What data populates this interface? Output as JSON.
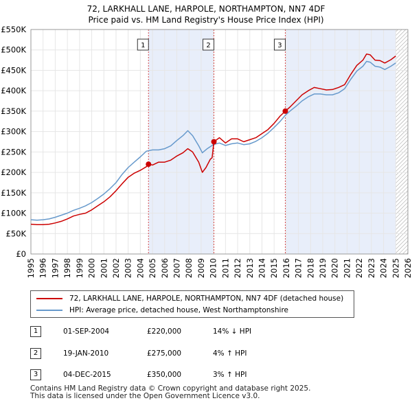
{
  "chart_data": {
    "type": "line",
    "title": "72, LARKHALL LANE, HARPOLE, NORTHAMPTON, NN7 4DF",
    "subtitle": "Price paid vs. HM Land Registry's House Price Index (HPI)",
    "xlim": [
      1995,
      2026
    ],
    "ylim": [
      0,
      550000
    ],
    "x_ticks": [
      "1995",
      "1996",
      "1997",
      "1998",
      "1999",
      "2000",
      "2001",
      "2002",
      "2003",
      "2004",
      "2005",
      "2006",
      "2007",
      "2008",
      "2009",
      "2010",
      "2011",
      "2012",
      "2013",
      "2014",
      "2015",
      "2016",
      "2017",
      "2018",
      "2019",
      "2020",
      "2021",
      "2022",
      "2023",
      "2024",
      "2025",
      "2026"
    ],
    "y_ticks": [
      {
        "value": 0,
        "label": "£0"
      },
      {
        "value": 50000,
        "label": "£50K"
      },
      {
        "value": 100000,
        "label": "£100K"
      },
      {
        "value": 150000,
        "label": "£150K"
      },
      {
        "value": 200000,
        "label": "£200K"
      },
      {
        "value": 250000,
        "label": "£250K"
      },
      {
        "value": 300000,
        "label": "£300K"
      },
      {
        "value": 350000,
        "label": "£350K"
      },
      {
        "value": 400000,
        "label": "£400K"
      },
      {
        "value": 450000,
        "label": "£450K"
      },
      {
        "value": 500000,
        "label": "£500K"
      },
      {
        "value": 550000,
        "label": "£550K"
      }
    ],
    "series": [
      {
        "name": "72, LARKHALL LANE, HARPOLE, NORTHAMPTON, NN7 4DF (detached house)",
        "color": "#cc0000",
        "points": [
          [
            1995.0,
            73000
          ],
          [
            1995.5,
            72000
          ],
          [
            1996.0,
            72000
          ],
          [
            1996.5,
            73000
          ],
          [
            1997.0,
            76000
          ],
          [
            1997.5,
            80000
          ],
          [
            1998.0,
            86000
          ],
          [
            1998.5,
            93000
          ],
          [
            1999.0,
            97000
          ],
          [
            1999.5,
            100000
          ],
          [
            2000.0,
            108000
          ],
          [
            2000.5,
            118000
          ],
          [
            2001.0,
            128000
          ],
          [
            2001.5,
            140000
          ],
          [
            2002.0,
            155000
          ],
          [
            2002.5,
            172000
          ],
          [
            2003.0,
            188000
          ],
          [
            2003.5,
            198000
          ],
          [
            2004.0,
            205000
          ],
          [
            2004.5,
            214000
          ],
          [
            2004.67,
            220000
          ],
          [
            2005.0,
            218000
          ],
          [
            2005.5,
            225000
          ],
          [
            2006.0,
            225000
          ],
          [
            2006.5,
            230000
          ],
          [
            2007.0,
            240000
          ],
          [
            2007.5,
            248000
          ],
          [
            2007.9,
            258000
          ],
          [
            2008.3,
            250000
          ],
          [
            2008.8,
            225000
          ],
          [
            2009.1,
            200000
          ],
          [
            2009.4,
            212000
          ],
          [
            2009.75,
            232000
          ],
          [
            2009.9,
            236000
          ],
          [
            2010.05,
            275000
          ],
          [
            2010.5,
            285000
          ],
          [
            2011.0,
            272000
          ],
          [
            2011.5,
            282000
          ],
          [
            2012.0,
            282000
          ],
          [
            2012.5,
            275000
          ],
          [
            2013.0,
            280000
          ],
          [
            2013.5,
            285000
          ],
          [
            2014.0,
            295000
          ],
          [
            2014.5,
            305000
          ],
          [
            2015.0,
            320000
          ],
          [
            2015.5,
            338000
          ],
          [
            2015.92,
            350000
          ],
          [
            2016.3,
            360000
          ],
          [
            2016.8,
            375000
          ],
          [
            2017.3,
            390000
          ],
          [
            2017.8,
            400000
          ],
          [
            2018.3,
            408000
          ],
          [
            2018.8,
            405000
          ],
          [
            2019.3,
            402000
          ],
          [
            2019.8,
            403000
          ],
          [
            2020.3,
            408000
          ],
          [
            2020.8,
            415000
          ],
          [
            2021.3,
            440000
          ],
          [
            2021.8,
            462000
          ],
          [
            2022.3,
            475000
          ],
          [
            2022.6,
            490000
          ],
          [
            2022.9,
            488000
          ],
          [
            2023.3,
            475000
          ],
          [
            2023.7,
            474000
          ],
          [
            2024.1,
            468000
          ],
          [
            2024.6,
            476000
          ],
          [
            2025.0,
            485000
          ]
        ]
      },
      {
        "name": "HPI: Average price, detached house, West Northamptonshire",
        "color": "#6699cc",
        "points": [
          [
            1995.0,
            84000
          ],
          [
            1995.5,
            83000
          ],
          [
            1996.0,
            84000
          ],
          [
            1996.5,
            86000
          ],
          [
            1997.0,
            90000
          ],
          [
            1997.5,
            95000
          ],
          [
            1998.0,
            100000
          ],
          [
            1998.5,
            107000
          ],
          [
            1999.0,
            112000
          ],
          [
            1999.5,
            118000
          ],
          [
            2000.0,
            126000
          ],
          [
            2000.5,
            136000
          ],
          [
            2001.0,
            147000
          ],
          [
            2001.5,
            160000
          ],
          [
            2002.0,
            175000
          ],
          [
            2002.5,
            195000
          ],
          [
            2003.0,
            212000
          ],
          [
            2003.5,
            225000
          ],
          [
            2004.0,
            238000
          ],
          [
            2004.5,
            252000
          ],
          [
            2005.0,
            255000
          ],
          [
            2005.5,
            255000
          ],
          [
            2006.0,
            258000
          ],
          [
            2006.5,
            265000
          ],
          [
            2007.0,
            278000
          ],
          [
            2007.5,
            290000
          ],
          [
            2007.9,
            302000
          ],
          [
            2008.3,
            290000
          ],
          [
            2008.8,
            265000
          ],
          [
            2009.1,
            248000
          ],
          [
            2009.5,
            258000
          ],
          [
            2010.0,
            268000
          ],
          [
            2010.5,
            272000
          ],
          [
            2011.0,
            266000
          ],
          [
            2011.5,
            270000
          ],
          [
            2012.0,
            272000
          ],
          [
            2012.5,
            268000
          ],
          [
            2013.0,
            270000
          ],
          [
            2013.5,
            276000
          ],
          [
            2014.0,
            285000
          ],
          [
            2014.5,
            296000
          ],
          [
            2015.0,
            310000
          ],
          [
            2015.5,
            325000
          ],
          [
            2015.92,
            340000
          ],
          [
            2016.3,
            350000
          ],
          [
            2016.8,
            362000
          ],
          [
            2017.3,
            375000
          ],
          [
            2017.8,
            385000
          ],
          [
            2018.3,
            392000
          ],
          [
            2018.8,
            392000
          ],
          [
            2019.3,
            390000
          ],
          [
            2019.8,
            390000
          ],
          [
            2020.3,
            395000
          ],
          [
            2020.8,
            405000
          ],
          [
            2021.3,
            428000
          ],
          [
            2021.8,
            448000
          ],
          [
            2022.3,
            460000
          ],
          [
            2022.6,
            472000
          ],
          [
            2022.9,
            470000
          ],
          [
            2023.3,
            460000
          ],
          [
            2023.7,
            458000
          ],
          [
            2024.1,
            452000
          ],
          [
            2024.6,
            460000
          ],
          [
            2025.0,
            468000
          ]
        ]
      }
    ],
    "sales": [
      {
        "label": "1",
        "x": 2004.67,
        "y": 220000
      },
      {
        "label": "2",
        "x": 2010.05,
        "y": 275000
      },
      {
        "label": "3",
        "x": 2015.92,
        "y": 350000
      }
    ],
    "highlight_ranges": [
      [
        2004.67,
        2010.05
      ],
      [
        2015.92,
        2025.0
      ]
    ],
    "hatched_after": 2025.0
  },
  "legend": {
    "property_label": "72, LARKHALL LANE, HARPOLE, NORTHAMPTON, NN7 4DF (detached house)",
    "hpi_label": "HPI: Average price, detached house, West Northamptonshire",
    "property_color": "#cc0000",
    "hpi_color": "#6699cc"
  },
  "transactions": [
    {
      "num": "1",
      "date": "01-SEP-2004",
      "price": "£220,000",
      "hpi": "14% ↓ HPI"
    },
    {
      "num": "2",
      "date": "19-JAN-2010",
      "price": "£275,000",
      "hpi": "4% ↑ HPI"
    },
    {
      "num": "3",
      "date": "04-DEC-2015",
      "price": "£350,000",
      "hpi": "3% ↑ HPI"
    }
  ],
  "footer": {
    "line1": "Contains HM Land Registry data © Crown copyright and database right 2025.",
    "line2": "This data is licensed under the Open Government Licence v3.0."
  }
}
